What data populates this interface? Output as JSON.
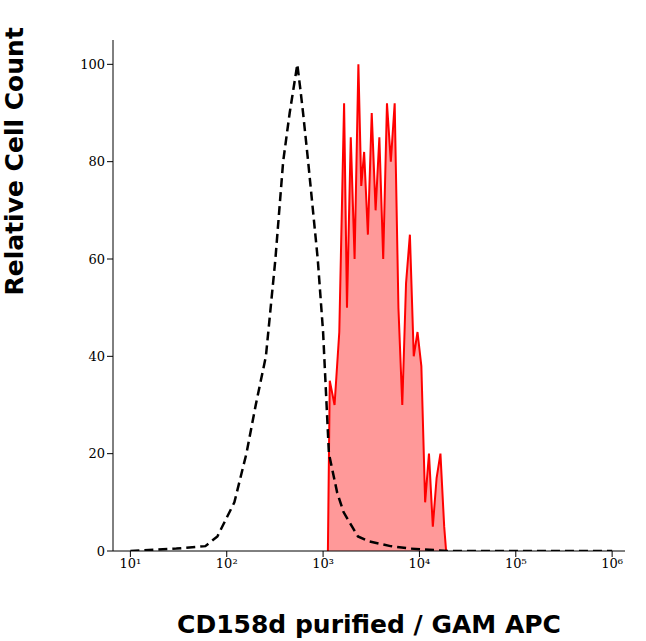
{
  "chart_data": {
    "type": "line",
    "x_label": "CD158d purified / GAM APC",
    "y_label": "Relative Cell Count",
    "log": "x",
    "grid": false,
    "xlim": [
      6.6,
      1360000
    ],
    "ylim": [
      0,
      105
    ],
    "xticks": [
      {
        "value": 10,
        "label": "10¹"
      },
      {
        "value": 100,
        "label": "10²"
      },
      {
        "value": 1000,
        "label": "10³"
      },
      {
        "value": 10000,
        "label": "10⁴"
      },
      {
        "value": 100000,
        "label": "10⁵"
      },
      {
        "value": 1000000,
        "label": "10⁶"
      }
    ],
    "yticks": [
      0,
      20,
      40,
      60,
      80,
      100
    ],
    "series": [
      {
        "type": "line",
        "line_style": "dashed",
        "color": "#000000",
        "x": [
          10,
          30,
          60,
          80,
          120,
          160,
          200,
          255,
          320,
          385,
          450,
          540,
          580,
          620,
          700,
          880,
          1000,
          1150,
          1400,
          1630,
          2000,
          2300,
          3000,
          5000,
          8000,
          20000,
          1000000
        ],
        "values": [
          0,
          0.5,
          1,
          3,
          10,
          20,
          30,
          40,
          60,
          80,
          90,
          100,
          95,
          90,
          80,
          60,
          45,
          20,
          12,
          8,
          5,
          3,
          2,
          1,
          0.5,
          0,
          0
        ]
      },
      {
        "type": "area",
        "color": "#ff0000",
        "x": [
          1122,
          1173,
          1315,
          1473,
          1652,
          1770,
          1938,
          2123,
          2325,
          2490,
          2667,
          2917,
          3198,
          3508,
          3837,
          4207,
          4603,
          5047,
          5534,
          6053,
          6637,
          7261,
          7962,
          8730,
          9550,
          10470,
          11460,
          12560,
          13770,
          15070,
          16520,
          18070,
          18920
        ],
        "values": [
          0,
          35,
          30,
          45,
          92,
          50,
          85,
          60,
          100,
          75,
          82,
          65,
          90,
          70,
          85,
          60,
          92,
          80,
          92,
          50,
          30,
          55,
          65,
          40,
          45,
          38,
          10,
          20,
          5,
          15,
          20,
          5,
          0
        ]
      }
    ]
  }
}
